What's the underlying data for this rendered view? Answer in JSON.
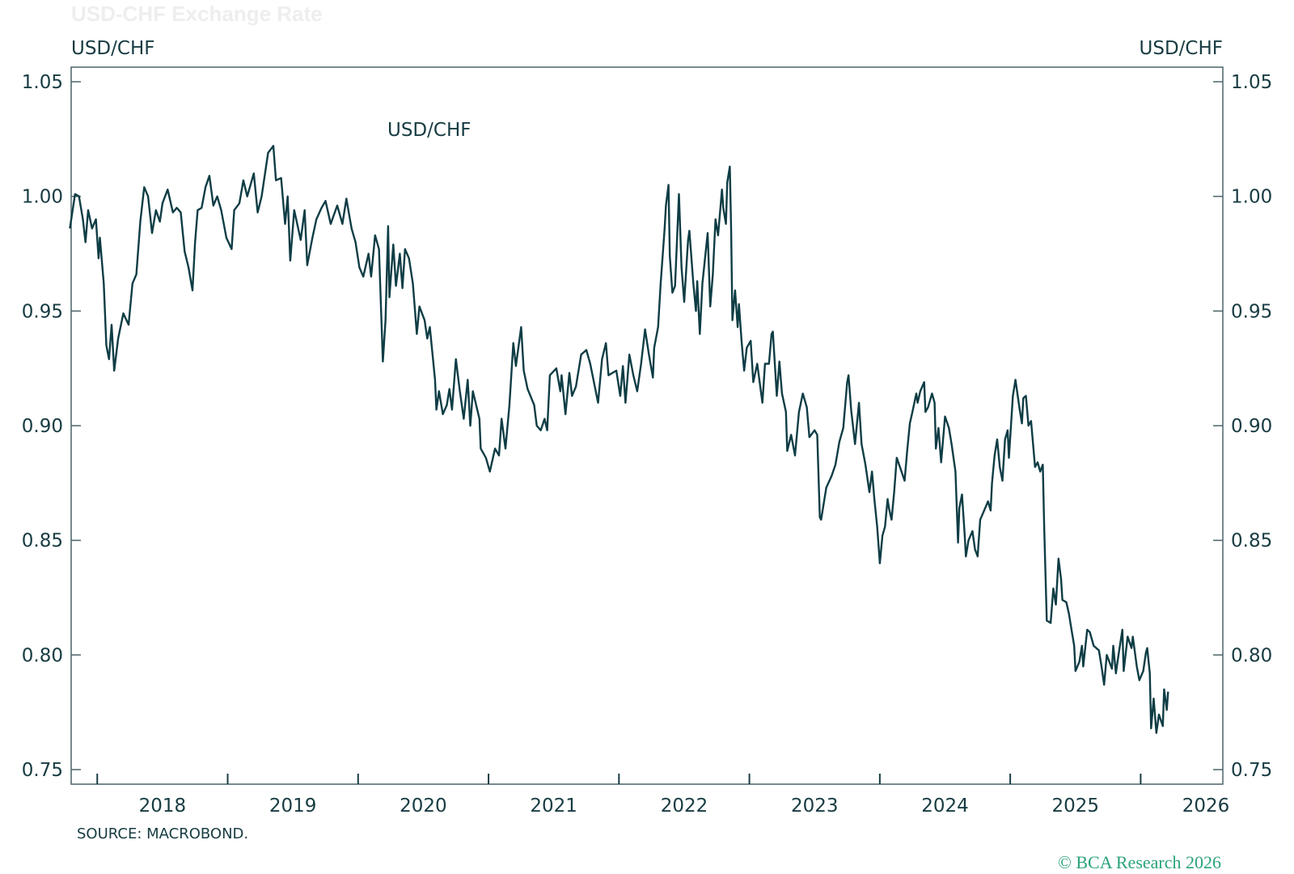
{
  "title": "USD-CHF Exchange Rate",
  "left_axis_label": "USD/CHF",
  "right_axis_label": "USD/CHF",
  "source": "SOURCE: MACROBOND.",
  "copyright": "© BCA Research 2026",
  "colors": {
    "line": "#0f3d45",
    "text": "#173c42",
    "axis": "#4a6468",
    "copyright": "#2aa37a"
  },
  "chart_data": {
    "type": "line",
    "title": "USD-CHF Exchange Rate",
    "ylabel": "USD/CHF",
    "ylabel_right": "USD/CHF",
    "xlim": [
      2017.8,
      2026.63
    ],
    "ylim": [
      0.75,
      1.05
    ],
    "yticks": [
      1.05,
      1.0,
      0.95,
      0.9,
      0.85,
      0.8,
      0.75
    ],
    "ytick_labels": [
      "1.05",
      "1.00",
      "0.95",
      "0.90",
      "0.85",
      "0.80",
      "0.75"
    ],
    "xtick_labels": [
      "2018",
      "2019",
      "2020",
      "2021",
      "2022",
      "2023",
      "2024",
      "2025",
      "2026"
    ],
    "grid": false,
    "legend": "inline-label",
    "series": [
      {
        "name": "USD/CHF",
        "x": [
          2017.79,
          2017.83,
          2017.86,
          2017.89,
          2017.91,
          2017.93,
          2017.96,
          2017.99,
          2018.01,
          2018.02,
          2018.05,
          2018.07,
          2018.09,
          2018.11,
          2018.13,
          2018.16,
          2018.2,
          2018.24,
          2018.27,
          2018.3,
          2018.33,
          2018.36,
          2018.39,
          2018.42,
          2018.45,
          2018.48,
          2018.5,
          2018.54,
          2018.58,
          2018.61,
          2018.64,
          2018.67,
          2018.7,
          2018.73,
          2018.75,
          2018.77,
          2018.8,
          2018.83,
          2018.86,
          2018.89,
          2018.92,
          2018.95,
          2018.99,
          2019.03,
          2019.05,
          2019.09,
          2019.12,
          2019.15,
          2019.2,
          2019.23,
          2019.26,
          2019.31,
          2019.35,
          2019.37,
          2019.41,
          2019.44,
          2019.46,
          2019.48,
          2019.51,
          2019.56,
          2019.59,
          2019.61,
          2019.65,
          2019.68,
          2019.72,
          2019.75,
          2019.79,
          2019.84,
          2019.88,
          2019.91,
          2019.95,
          2019.98,
          2020.01,
          2020.04,
          2020.08,
          2020.1,
          2020.13,
          2020.16,
          2020.19,
          2020.21,
          2020.23,
          2020.24,
          2020.27,
          2020.29,
          2020.32,
          2020.34,
          2020.36,
          2020.39,
          2020.42,
          2020.45,
          2020.47,
          2020.51,
          2020.53,
          2020.55,
          2020.59,
          2020.6,
          2020.62,
          2020.65,
          2020.68,
          2020.7,
          2020.72,
          2020.75,
          2020.78,
          2020.81,
          2020.84,
          2020.86,
          2020.88,
          2020.93,
          2020.94,
          2020.98,
          2021.01,
          2021.05,
          2021.08,
          2021.1,
          2021.13,
          2021.16,
          2021.19,
          2021.21,
          2021.25,
          2021.27,
          2021.3,
          2021.35,
          2021.37,
          2021.4,
          2021.43,
          2021.45,
          2021.47,
          2021.52,
          2021.55,
          2021.56,
          2021.59,
          2021.62,
          2021.64,
          2021.67,
          2021.71,
          2021.75,
          2021.78,
          2021.84,
          2021.87,
          2021.9,
          2021.92,
          2021.98,
          2022.01,
          2022.03,
          2022.05,
          2022.08,
          2022.11,
          2022.14,
          2022.17,
          2022.2,
          2022.23,
          2022.26,
          2022.27,
          2022.3,
          2022.32,
          2022.35,
          2022.36,
          2022.38,
          2022.39,
          2022.41,
          2022.43,
          2022.46,
          2022.48,
          2022.5,
          2022.53,
          2022.54,
          2022.57,
          2022.59,
          2022.6,
          2022.62,
          2022.64,
          2022.68,
          2022.7,
          2022.72,
          2022.74,
          2022.76,
          2022.79,
          2022.8,
          2022.82,
          2022.83,
          2022.85,
          2022.86,
          2022.87,
          2022.89,
          2022.91,
          2022.92,
          2022.94,
          2022.96,
          2022.98,
          2023.01,
          2023.03,
          2023.06,
          2023.1,
          2023.12,
          2023.15,
          2023.17,
          2023.18,
          2023.21,
          2023.23,
          2023.25,
          2023.28,
          2023.29,
          2023.32,
          2023.35,
          2023.38,
          2023.41,
          2023.44,
          2023.46,
          2023.5,
          2023.52,
          2023.54,
          2023.55,
          2023.57,
          2023.59,
          2023.63,
          2023.66,
          2023.69,
          2023.72,
          2023.75,
          2023.76,
          2023.78,
          2023.81,
          2023.84,
          2023.86,
          2023.89,
          2023.92,
          2023.94,
          2023.96,
          2023.98,
          2024.0,
          2024.02,
          2024.04,
          2024.06,
          2024.07,
          2024.09,
          2024.11,
          2024.13,
          2024.16,
          2024.19,
          2024.21,
          2024.23,
          2024.25,
          2024.28,
          2024.29,
          2024.31,
          2024.34,
          2024.35,
          2024.37,
          2024.4,
          2024.42,
          2024.43,
          2024.45,
          2024.47,
          2024.5,
          2024.53,
          2024.55,
          2024.58,
          2024.6,
          2024.61,
          2024.63,
          2024.65,
          2024.66,
          2024.68,
          2024.71,
          2024.73,
          2024.75,
          2024.77,
          2024.8,
          2024.83,
          2024.85,
          2024.86,
          2024.88,
          2024.9,
          2024.92,
          2024.94,
          2024.96,
          2024.98,
          2024.99,
          2025.02,
          2025.04,
          2025.07,
          2025.09,
          2025.1,
          2025.12,
          2025.14,
          2025.16,
          2025.19,
          2025.21,
          2025.23,
          2025.25,
          2025.26,
          2025.28,
          2025.31,
          2025.33,
          2025.35,
          2025.37,
          2025.39,
          2025.4,
          2025.43,
          2025.45,
          2025.47,
          2025.49,
          2025.5,
          2025.53,
          2025.55,
          2025.56,
          2025.59,
          2025.61,
          2025.64,
          2025.68,
          2025.7,
          2025.72,
          2025.74,
          2025.78,
          2025.79,
          2025.81,
          2025.83,
          2025.86,
          2025.87,
          2025.9,
          2025.93,
          2025.94,
          2025.97,
          2025.99,
          2026.02,
          2026.04,
          2026.05,
          2026.07,
          2026.08,
          2026.1,
          2026.12,
          2026.14,
          2026.17,
          2026.18,
          2026.2,
          2026.21
        ],
        "values": [
          0.986,
          1.001,
          1.0,
          0.99,
          0.98,
          0.994,
          0.986,
          0.99,
          0.973,
          0.982,
          0.962,
          0.935,
          0.929,
          0.944,
          0.924,
          0.938,
          0.949,
          0.944,
          0.962,
          0.966,
          0.989,
          1.004,
          1.0,
          0.984,
          0.994,
          0.989,
          0.997,
          1.003,
          0.993,
          0.995,
          0.993,
          0.976,
          0.969,
          0.959,
          0.98,
          0.994,
          0.995,
          1.004,
          1.009,
          0.996,
          1.0,
          0.994,
          0.982,
          0.977,
          0.994,
          0.997,
          1.007,
          1.0,
          1.01,
          0.993,
          1.0,
          1.019,
          1.022,
          1.007,
          1.008,
          0.988,
          1.0,
          0.972,
          0.994,
          0.981,
          0.994,
          0.97,
          0.982,
          0.99,
          0.995,
          0.998,
          0.988,
          0.996,
          0.988,
          0.999,
          0.986,
          0.98,
          0.969,
          0.965,
          0.975,
          0.965,
          0.983,
          0.977,
          0.928,
          0.946,
          0.987,
          0.956,
          0.979,
          0.961,
          0.975,
          0.96,
          0.977,
          0.973,
          0.962,
          0.94,
          0.952,
          0.946,
          0.938,
          0.943,
          0.92,
          0.907,
          0.915,
          0.905,
          0.909,
          0.916,
          0.907,
          0.929,
          0.915,
          0.903,
          0.92,
          0.9,
          0.915,
          0.903,
          0.89,
          0.886,
          0.88,
          0.89,
          0.887,
          0.903,
          0.89,
          0.909,
          0.936,
          0.926,
          0.943,
          0.924,
          0.916,
          0.909,
          0.9,
          0.898,
          0.903,
          0.898,
          0.922,
          0.925,
          0.915,
          0.922,
          0.905,
          0.923,
          0.913,
          0.917,
          0.931,
          0.933,
          0.927,
          0.91,
          0.929,
          0.936,
          0.922,
          0.924,
          0.913,
          0.926,
          0.91,
          0.931,
          0.922,
          0.915,
          0.927,
          0.942,
          0.931,
          0.921,
          0.934,
          0.943,
          0.962,
          0.986,
          0.996,
          1.005,
          0.974,
          0.958,
          0.961,
          1.001,
          0.969,
          0.954,
          0.981,
          0.985,
          0.962,
          0.95,
          0.963,
          0.94,
          0.962,
          0.984,
          0.952,
          0.966,
          0.99,
          0.983,
          1.003,
          0.995,
          0.988,
          1.006,
          1.013,
          0.986,
          0.946,
          0.959,
          0.943,
          0.953,
          0.937,
          0.924,
          0.934,
          0.937,
          0.919,
          0.927,
          0.91,
          0.927,
          0.927,
          0.94,
          0.941,
          0.913,
          0.928,
          0.914,
          0.906,
          0.889,
          0.896,
          0.887,
          0.906,
          0.914,
          0.908,
          0.895,
          0.898,
          0.896,
          0.86,
          0.859,
          0.866,
          0.873,
          0.878,
          0.883,
          0.893,
          0.899,
          0.919,
          0.922,
          0.907,
          0.892,
          0.91,
          0.892,
          0.883,
          0.871,
          0.88,
          0.867,
          0.856,
          0.84,
          0.852,
          0.856,
          0.868,
          0.864,
          0.859,
          0.871,
          0.886,
          0.881,
          0.876,
          0.889,
          0.901,
          0.906,
          0.914,
          0.91,
          0.915,
          0.919,
          0.906,
          0.908,
          0.914,
          0.91,
          0.89,
          0.899,
          0.884,
          0.904,
          0.899,
          0.892,
          0.88,
          0.849,
          0.864,
          0.87,
          0.853,
          0.843,
          0.85,
          0.854,
          0.846,
          0.843,
          0.859,
          0.863,
          0.867,
          0.863,
          0.875,
          0.887,
          0.894,
          0.882,
          0.876,
          0.894,
          0.898,
          0.886,
          0.913,
          0.92,
          0.908,
          0.901,
          0.912,
          0.913,
          0.9,
          0.902,
          0.882,
          0.884,
          0.88,
          0.883,
          0.856,
          0.815,
          0.814,
          0.829,
          0.822,
          0.842,
          0.833,
          0.824,
          0.823,
          0.818,
          0.811,
          0.804,
          0.793,
          0.797,
          0.804,
          0.795,
          0.811,
          0.81,
          0.804,
          0.802,
          0.795,
          0.787,
          0.8,
          0.794,
          0.804,
          0.792,
          0.8,
          0.811,
          0.793,
          0.808,
          0.803,
          0.808,
          0.795,
          0.789,
          0.793,
          0.801,
          0.803,
          0.792,
          0.768,
          0.781,
          0.766,
          0.774,
          0.769,
          0.785,
          0.776,
          0.784
        ]
      }
    ]
  }
}
